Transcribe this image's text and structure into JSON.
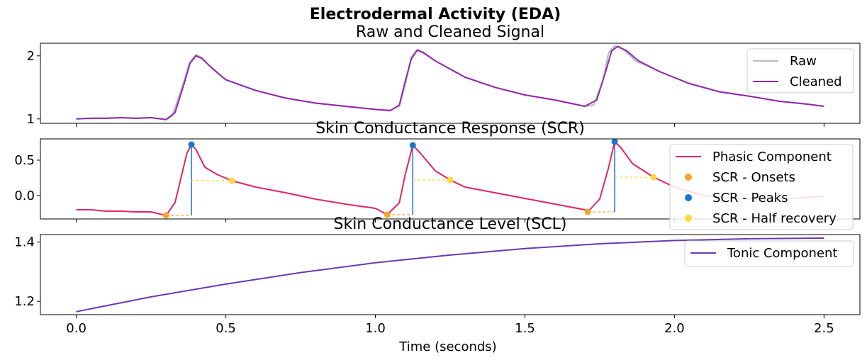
{
  "chart_data": {
    "title": "Electrodermal Activity (EDA)",
    "xlabel": "Time (seconds)",
    "xlim": [
      -0.12,
      2.62
    ],
    "xticks": [
      0.0,
      0.5,
      1.0,
      1.5,
      2.0,
      2.5
    ],
    "xtick_labels": [
      "0.0",
      "0.5",
      "1.0",
      "1.5",
      "2.0",
      "2.5"
    ],
    "panels": [
      {
        "type": "line",
        "title": "Raw and Cleaned Signal",
        "ylim": [
          0.93,
          2.2
        ],
        "yticks": [
          1,
          2
        ],
        "ytick_labels": [
          "1",
          "2"
        ],
        "legend": "top-right",
        "series": [
          {
            "name": "Raw",
            "color": "#b8bdbe",
            "x": [
              0.0,
              0.05,
              0.1,
              0.15,
              0.2,
              0.25,
              0.3,
              0.32,
              0.35,
              0.38,
              0.4,
              0.42,
              0.45,
              0.5,
              0.6,
              0.7,
              0.8,
              0.9,
              1.0,
              1.05,
              1.08,
              1.1,
              1.12,
              1.14,
              1.16,
              1.2,
              1.3,
              1.4,
              1.5,
              1.6,
              1.7,
              1.73,
              1.76,
              1.78,
              1.8,
              1.83,
              1.87,
              1.95,
              2.05,
              2.15,
              2.25,
              2.35,
              2.45,
              2.5
            ],
            "y": [
              1.0,
              1.01,
              1.01,
              1.02,
              1.01,
              1.02,
              0.99,
              1.04,
              1.45,
              1.9,
              2.02,
              1.97,
              1.82,
              1.62,
              1.45,
              1.33,
              1.25,
              1.2,
              1.15,
              1.14,
              1.2,
              1.55,
              1.98,
              2.1,
              2.06,
              1.92,
              1.66,
              1.5,
              1.38,
              1.3,
              1.2,
              1.22,
              1.6,
              2.05,
              2.16,
              2.1,
              1.92,
              1.75,
              1.56,
              1.43,
              1.36,
              1.28,
              1.23,
              1.2
            ]
          },
          {
            "name": "Cleaned",
            "color": "#9627b0",
            "x": [
              0.0,
              0.05,
              0.1,
              0.15,
              0.2,
              0.25,
              0.3,
              0.33,
              0.36,
              0.38,
              0.4,
              0.42,
              0.45,
              0.5,
              0.6,
              0.7,
              0.8,
              0.9,
              1.0,
              1.05,
              1.08,
              1.1,
              1.12,
              1.14,
              1.16,
              1.2,
              1.3,
              1.4,
              1.5,
              1.6,
              1.7,
              1.74,
              1.77,
              1.79,
              1.81,
              1.84,
              1.88,
              1.95,
              2.05,
              2.15,
              2.25,
              2.35,
              2.45,
              2.5
            ],
            "y": [
              1.0,
              1.01,
              1.01,
              1.02,
              1.01,
              1.02,
              0.99,
              1.1,
              1.55,
              1.88,
              2.0,
              1.96,
              1.82,
              1.62,
              1.45,
              1.33,
              1.25,
              1.2,
              1.15,
              1.13,
              1.22,
              1.6,
              1.95,
              2.09,
              2.05,
              1.92,
              1.66,
              1.5,
              1.38,
              1.3,
              1.2,
              1.3,
              1.75,
              2.08,
              2.15,
              2.08,
              1.92,
              1.75,
              1.56,
              1.43,
              1.36,
              1.28,
              1.23,
              1.2
            ]
          }
        ]
      },
      {
        "type": "line",
        "title": "Skin Conductance Response (SCR)",
        "ylim": [
          -0.33,
          0.8
        ],
        "yticks": [
          0.0,
          0.5
        ],
        "ytick_labels": [
          "0.0",
          "0.5"
        ],
        "legend": "top-right",
        "series": [
          {
            "name": "Phasic Component",
            "color": "#e22564",
            "x": [
              0.0,
              0.05,
              0.1,
              0.15,
              0.2,
              0.25,
              0.3,
              0.33,
              0.35,
              0.37,
              0.385,
              0.4,
              0.43,
              0.47,
              0.52,
              0.6,
              0.7,
              0.8,
              0.9,
              1.0,
              1.04,
              1.08,
              1.1,
              1.125,
              1.15,
              1.2,
              1.25,
              1.3,
              1.4,
              1.5,
              1.6,
              1.7,
              1.71,
              1.75,
              1.78,
              1.8,
              1.82,
              1.86,
              1.93,
              2.0,
              2.1,
              2.2,
              2.3,
              2.4,
              2.5
            ],
            "y": [
              -0.2,
              -0.2,
              -0.22,
              -0.22,
              -0.23,
              -0.23,
              -0.28,
              -0.1,
              0.25,
              0.6,
              0.72,
              0.65,
              0.4,
              0.3,
              0.21,
              0.12,
              0.04,
              -0.05,
              -0.12,
              -0.18,
              -0.27,
              -0.1,
              0.3,
              0.71,
              0.6,
              0.35,
              0.22,
              0.12,
              0.04,
              -0.04,
              -0.12,
              -0.2,
              -0.23,
              -0.05,
              0.4,
              0.76,
              0.68,
              0.45,
              0.26,
              0.12,
              0.0,
              -0.04,
              -0.05,
              -0.04,
              -0.01
            ]
          }
        ],
        "onsets": {
          "name": "SCR - Onsets",
          "color": "#f7a42a",
          "x": [
            0.3,
            1.04,
            1.71
          ],
          "y": [
            -0.28,
            -0.27,
            -0.23
          ]
        },
        "peaks": {
          "name": "SCR - Peaks",
          "color": "#1974d2",
          "x": [
            0.385,
            1.125,
            1.8
          ],
          "y": [
            0.72,
            0.71,
            0.76
          ]
        },
        "half_recovery": {
          "name": "SCR - Half recovery",
          "color": "#fbd83b",
          "x": [
            0.52,
            1.25,
            1.93
          ],
          "y": [
            0.21,
            0.22,
            0.26
          ]
        }
      },
      {
        "type": "line",
        "title": "Skin Conductance Level (SCL)",
        "ylim": [
          1.155,
          1.425
        ],
        "yticks": [
          1.2,
          1.4
        ],
        "ytick_labels": [
          "1.2",
          "1.4"
        ],
        "legend": "top-right",
        "series": [
          {
            "name": "Tonic Component",
            "color": "#673ab7",
            "x": [
              0.0,
              0.25,
              0.5,
              0.75,
              1.0,
              1.25,
              1.5,
              1.75,
              2.0,
              2.25,
              2.5
            ],
            "y": [
              1.165,
              1.215,
              1.258,
              1.297,
              1.33,
              1.356,
              1.378,
              1.394,
              1.405,
              1.411,
              1.413
            ]
          }
        ]
      }
    ]
  }
}
